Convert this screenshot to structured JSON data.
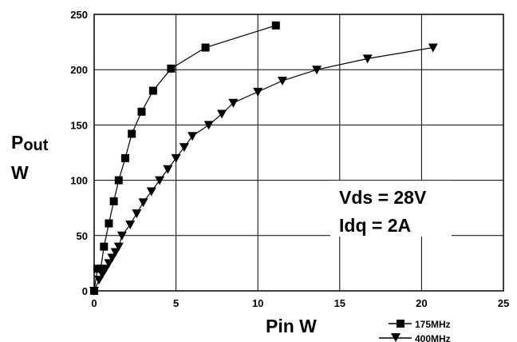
{
  "chart_data": {
    "type": "line",
    "xlabel": "Pin  W",
    "ylabel_main": "P",
    "ylabel_sub": "out",
    "ylabel_unit": "W",
    "xlim": [
      0,
      25
    ],
    "ylim": [
      0,
      250
    ],
    "xticks": [
      0,
      5,
      10,
      15,
      20,
      25
    ],
    "yticks": [
      0,
      50,
      100,
      150,
      200,
      250
    ],
    "grid": true,
    "legend_position": "bottom-right",
    "annotations": [
      "Vds = 28V",
      "Idq = 2A"
    ],
    "series": [
      {
        "name": "175MHz",
        "marker": "square",
        "x": [
          0.0,
          0.2,
          0.4,
          0.6,
          0.9,
          1.2,
          1.5,
          1.9,
          2.3,
          2.9,
          3.6,
          4.7,
          6.8,
          11.1
        ],
        "y": [
          0,
          20,
          20,
          40,
          61,
          81,
          100,
          120,
          142,
          162,
          181,
          201,
          220,
          240
        ]
      },
      {
        "name": "400MHz",
        "marker": "triangle-down",
        "x": [
          0.0,
          0.3,
          0.5,
          0.7,
          0.9,
          1.1,
          1.3,
          1.5,
          1.7,
          2.2,
          2.6,
          3.0,
          3.5,
          4.0,
          4.5,
          5.0,
          5.5,
          6.0,
          7.0,
          7.8,
          8.5,
          10.0,
          11.5,
          13.6,
          16.7,
          20.7
        ],
        "y": [
          0,
          10,
          15,
          20,
          25,
          30,
          35,
          40,
          50,
          60,
          70,
          80,
          90,
          100,
          110,
          120,
          130,
          140,
          150,
          160,
          170,
          180,
          190,
          200,
          210,
          220
        ]
      }
    ]
  }
}
